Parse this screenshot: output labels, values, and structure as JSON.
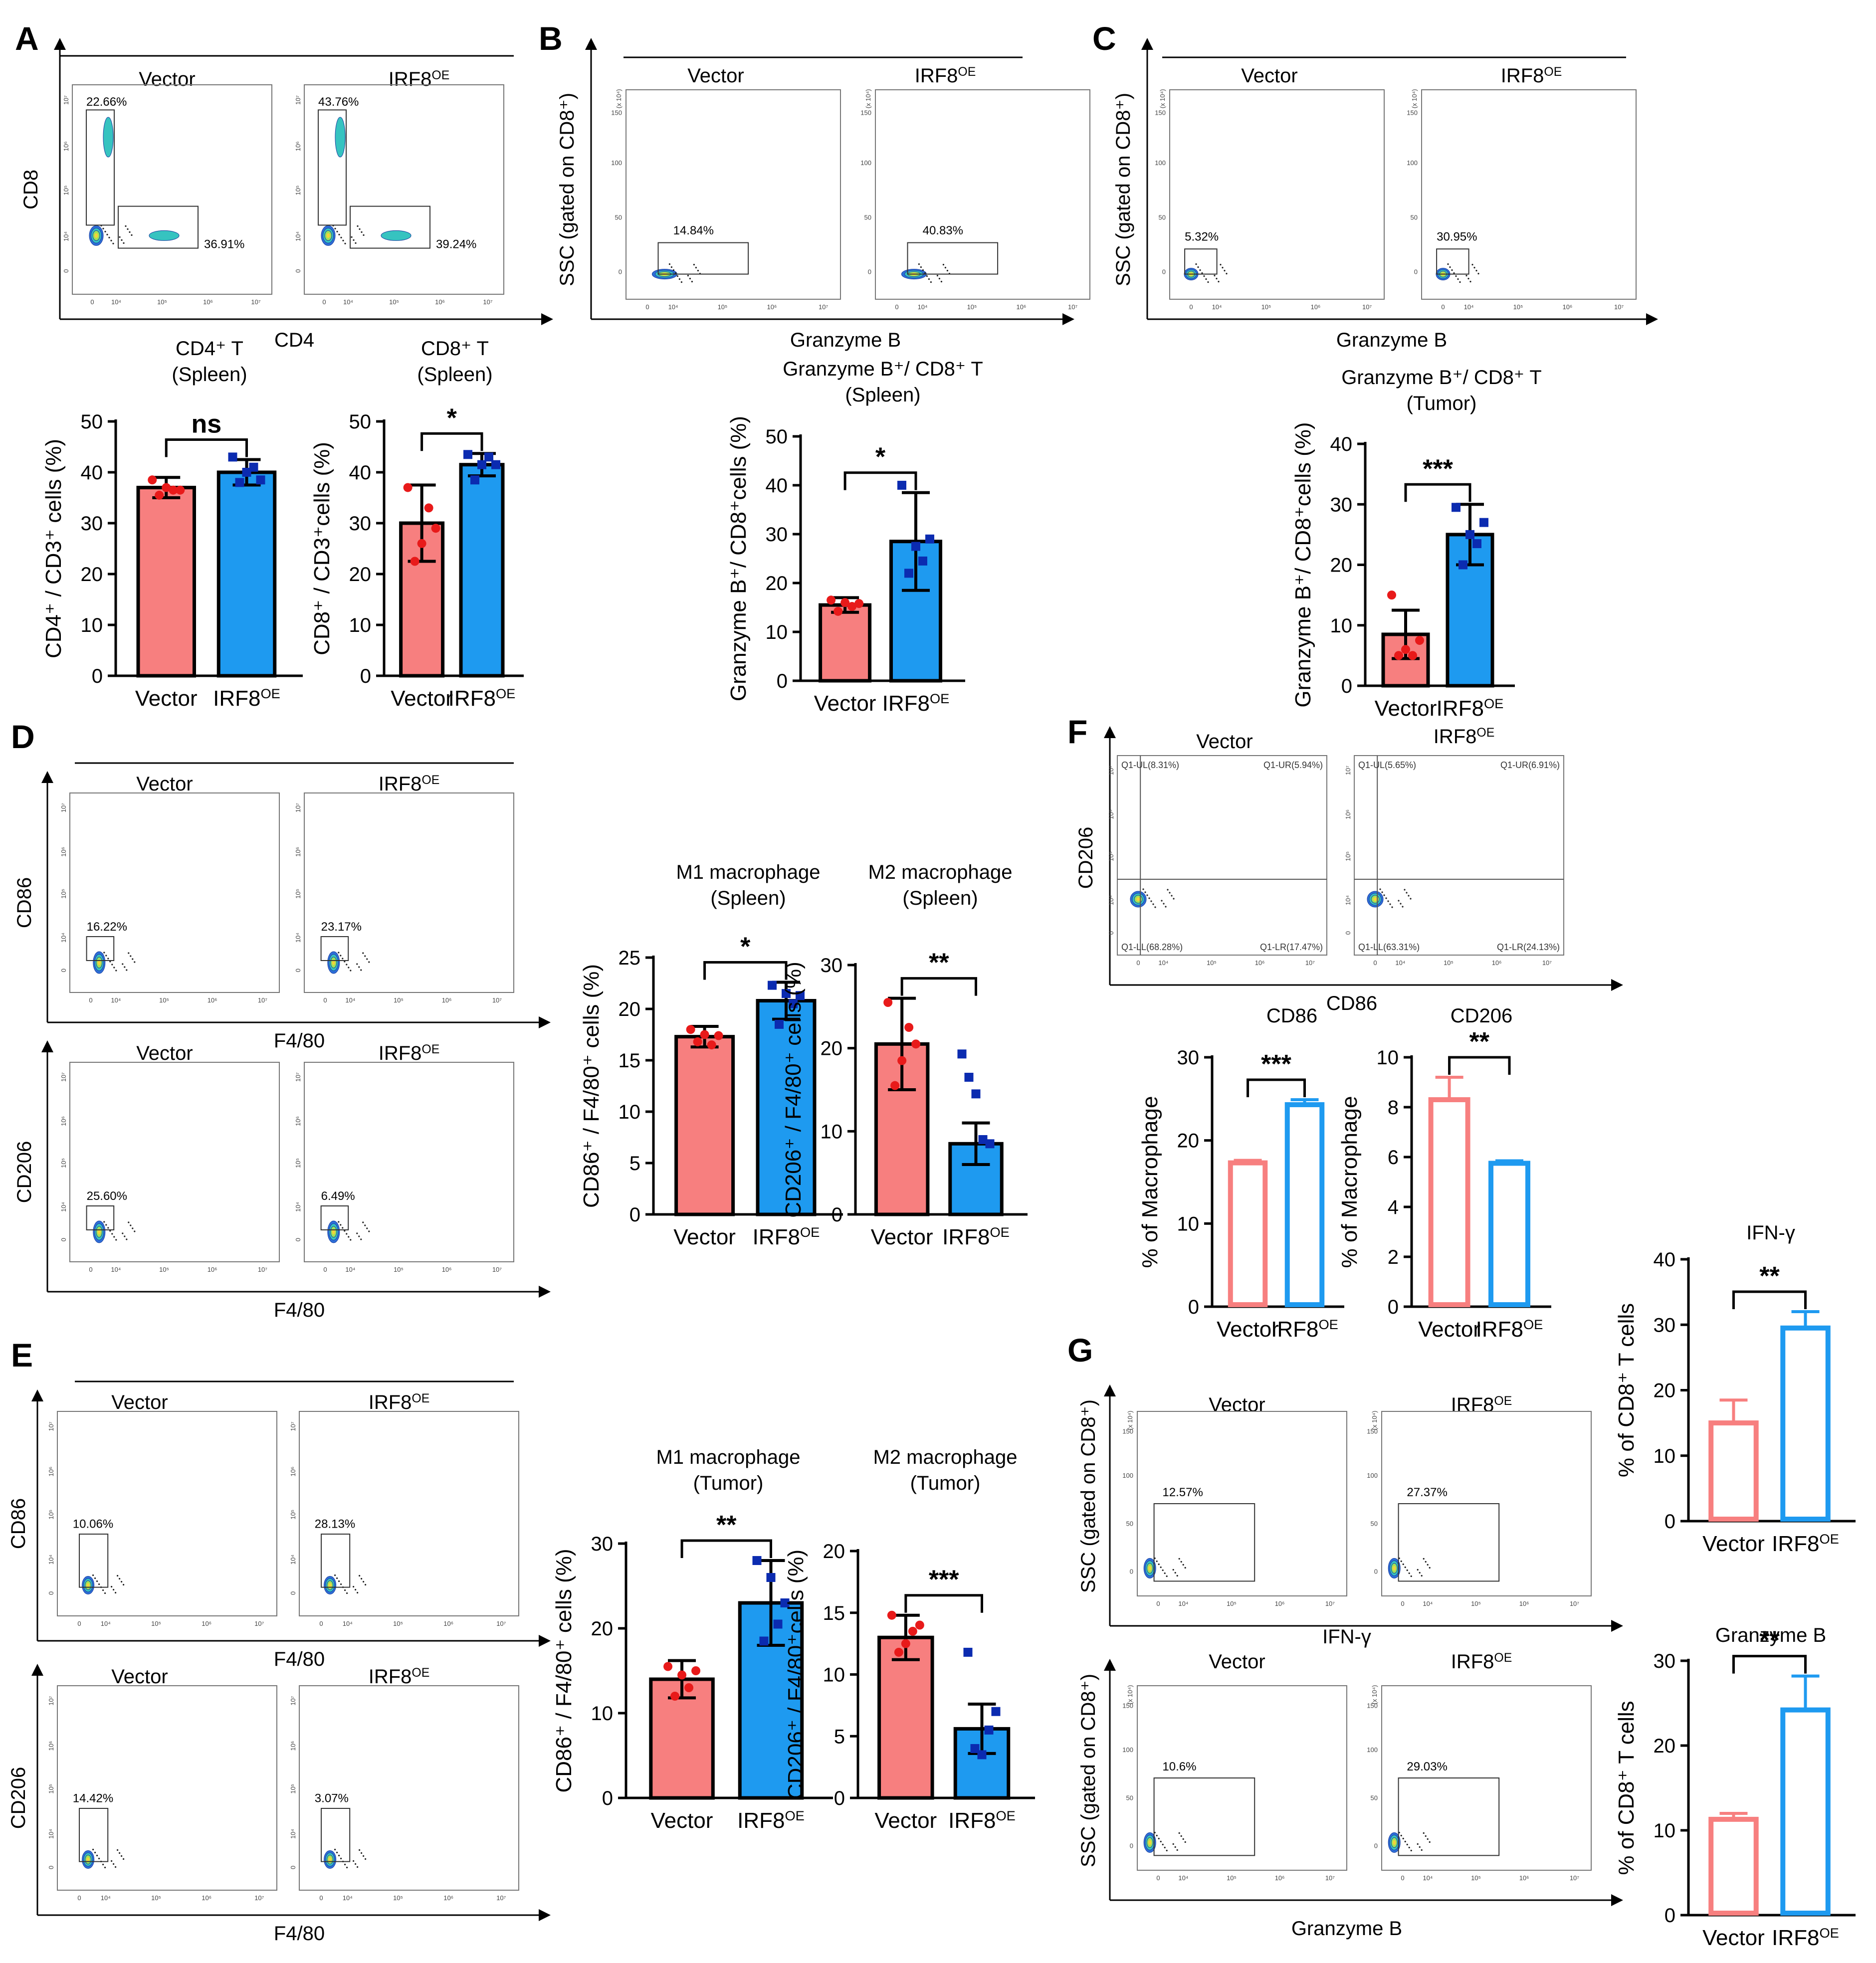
{
  "panels": {
    "A": {
      "label": "A",
      "group": "Spleen",
      "samples": [
        "Vector",
        "IRF8OE"
      ],
      "x_axis": "CD4",
      "y_axis": "CD8",
      "gates": [
        [
          "22.66%",
          "36.91%"
        ],
        [
          "43.76%",
          "39.24%"
        ]
      ]
    },
    "B": {
      "label": "B",
      "group": "Spleen",
      "samples": [
        "Vector",
        "IRF8OE"
      ],
      "x_axis": "Granzyme B",
      "y_axis": "SSC (gated on CD8⁺)",
      "gates": [
        [
          "14.84%"
        ],
        [
          "40.83%"
        ]
      ]
    },
    "C": {
      "label": "C",
      "group": "Tumor",
      "samples": [
        "Vector",
        "IRF8OE"
      ],
      "x_axis": "Granzyme B",
      "y_axis": "SSC (gated on CD8⁺)",
      "gates": [
        [
          "5.32%"
        ],
        [
          "30.95%"
        ]
      ]
    },
    "D": {
      "label": "D",
      "group": "Spleen",
      "rows": [
        {
          "y_axis": "CD86",
          "x_axis": "F4/80",
          "samples": [
            "Vector",
            "IRF8OE"
          ],
          "gates": [
            "16.22%",
            "23.17%"
          ]
        },
        {
          "y_axis": "CD206",
          "x_axis": "F4/80",
          "samples": [
            "Vector",
            "IRF8OE"
          ],
          "gates": [
            "25.60%",
            "6.49%"
          ]
        }
      ]
    },
    "E": {
      "label": "E",
      "group": "Tumor",
      "rows": [
        {
          "y_axis": "CD86",
          "x_axis": "F4/80",
          "samples": [
            "Vector",
            "IRF8OE"
          ],
          "gates": [
            "10.06%",
            "28.13%"
          ]
        },
        {
          "y_axis": "CD206",
          "x_axis": "F4/80",
          "samples": [
            "Vector",
            "IRF8OE"
          ],
          "gates": [
            "14.42%",
            "3.07%"
          ]
        }
      ]
    },
    "F": {
      "label": "F",
      "samples": [
        "Vector",
        "IRF8OE"
      ],
      "x_axis": "CD86",
      "y_axis": "CD206",
      "quadrants": [
        [
          "Q1-UL(8.31%)",
          "Q1-UR(5.94%)",
          "Q1-LL(68.28%)",
          "Q1-LR(17.47%)"
        ],
        [
          "Q1-UL(5.65%)",
          "Q1-UR(6.91%)",
          "Q1-LL(63.31%)",
          "Q1-LR(24.13%)"
        ]
      ]
    },
    "G": {
      "label": "G",
      "rows": [
        {
          "y_axis": "SSC (gated on CD8⁺)",
          "x_axis": "IFN-γ",
          "samples": [
            "Vector",
            "IRF8OE"
          ],
          "gates": [
            "12.57%",
            "27.37%"
          ]
        },
        {
          "y_axis": "SSC (gated on CD8⁺)",
          "x_axis": "Granzyme B",
          "samples": [
            "Vector",
            "IRF8OE"
          ],
          "gates": [
            "10.6%",
            "29.03%"
          ]
        }
      ]
    }
  },
  "flow_ticks": {
    "log": [
      "0",
      "10⁴",
      "10⁵",
      "10⁶",
      "10⁷"
    ],
    "linear": [
      "0",
      "50",
      "100",
      "150"
    ],
    "scale": "(x 10⁴)"
  },
  "colors": {
    "vector": "#f77f7f",
    "irf8": "#1e9af0",
    "vector_dot": "#e81a1a",
    "irf8_dot": "#0b2bb0"
  },
  "chart_data": [
    {
      "id": "A1",
      "type": "bar",
      "title": [
        "CD4⁺ T",
        "(Spleen)"
      ],
      "ylabel": "CD4⁺ / CD3⁺ cells (%)",
      "ylim": [
        0,
        50
      ],
      "yticks": [
        0,
        10,
        20,
        30,
        40,
        50
      ],
      "categories": [
        "Vector",
        "IRF8OE"
      ],
      "values": [
        37,
        40
      ],
      "errors": [
        2,
        2.5
      ],
      "points": [
        [
          38.5,
          35.5,
          37,
          36.5,
          36.5
        ],
        [
          43,
          38,
          40,
          41,
          38.5
        ]
      ],
      "significance": "ns",
      "style": "filled"
    },
    {
      "id": "A2",
      "type": "bar",
      "title": [
        "CD8⁺ T",
        "(Spleen)"
      ],
      "ylabel": "CD8⁺ / CD3⁺cells (%)",
      "ylim": [
        0,
        50
      ],
      "yticks": [
        0,
        10,
        20,
        30,
        40,
        50
      ],
      "categories": [
        "Vector",
        "IRF8OE"
      ],
      "values": [
        30,
        41.5
      ],
      "errors": [
        7.5,
        2.2
      ],
      "points": [
        [
          37,
          22.5,
          26,
          33,
          29
        ],
        [
          43.5,
          38.5,
          41.5,
          43,
          41.5
        ]
      ],
      "significance": "*",
      "style": "filled"
    },
    {
      "id": "B1",
      "type": "bar",
      "title": [
        "Granzyme B⁺/ CD8⁺ T",
        "(Spleen)"
      ],
      "ylabel": "Granzyme B⁺/ CD8⁺cells (%)",
      "ylim": [
        0,
        50
      ],
      "yticks": [
        0,
        10,
        20,
        30,
        40,
        50
      ],
      "categories": [
        "Vector",
        "IRF8OE"
      ],
      "values": [
        15.5,
        28.5
      ],
      "errors": [
        1.5,
        10
      ],
      "points": [
        [
          16.5,
          14.2,
          16,
          15.2,
          15.8
        ],
        [
          40,
          22,
          27.5,
          24.5,
          29
        ]
      ],
      "significance": "*",
      "style": "filled"
    },
    {
      "id": "C1",
      "type": "bar",
      "title": [
        "Granzyme B⁺/ CD8⁺ T",
        "(Tumor)"
      ],
      "ylabel": "Granzyme B⁺/ CD8⁺cells (%)",
      "ylim": [
        0,
        40
      ],
      "yticks": [
        0,
        10,
        20,
        30,
        40
      ],
      "categories": [
        "Vector",
        "IRF8OE"
      ],
      "values": [
        8.5,
        25
      ],
      "errors": [
        4,
        5
      ],
      "points": [
        [
          15,
          5,
          6,
          5,
          7.5
        ],
        [
          29.5,
          20,
          25,
          23.5,
          27
        ]
      ],
      "significance": "***",
      "style": "filled"
    },
    {
      "id": "D1",
      "type": "bar",
      "title": [
        "M1 macrophage",
        "(Spleen)"
      ],
      "ylabel": "CD86⁺ / F4/80⁺ cells (%)",
      "ylim": [
        0,
        25
      ],
      "yticks": [
        0,
        5,
        10,
        15,
        20,
        25
      ],
      "categories": [
        "Vector",
        "IRF8OE"
      ],
      "values": [
        17.3,
        20.8
      ],
      "errors": [
        1.0,
        1.8
      ],
      "points": [
        [
          18,
          16.8,
          17.5,
          16.5,
          17.4
        ],
        [
          22.3,
          18.5,
          21.5,
          20.5,
          21.3
        ]
      ],
      "significance": "*",
      "style": "filled"
    },
    {
      "id": "D2",
      "type": "bar",
      "title": [
        "M2 macrophage",
        "(Spleen)"
      ],
      "ylabel": "CD206⁺ / F4/80⁺ cells (%)",
      "ylim": [
        0,
        30
      ],
      "yticks": [
        0,
        10,
        20,
        30
      ],
      "categories": [
        "Vector",
        "IRF8OE"
      ],
      "values": [
        20.5,
        8.5
      ],
      "errors": [
        5.5,
        2.5
      ],
      "points": [
        [
          25.5,
          15.5,
          18.5,
          22.5,
          20.5
        ],
        [
          19.3,
          16.5,
          14.5,
          9,
          8.5
        ]
      ],
      "significance": "**",
      "style": "filled"
    },
    {
      "id": "E1",
      "type": "bar",
      "title": [
        "M1 macrophage",
        "(Tumor)"
      ],
      "ylabel": "CD86⁺ / F4/80⁺ cells (%)",
      "ylim": [
        0,
        30
      ],
      "yticks": [
        0,
        10,
        20,
        30
      ],
      "categories": [
        "Vector",
        "IRF8OE"
      ],
      "values": [
        14,
        23
      ],
      "errors": [
        2.2,
        5
      ],
      "points": [
        [
          15.5,
          12,
          14.5,
          13,
          15
        ],
        [
          28,
          18.5,
          26,
          20.5,
          23
        ]
      ],
      "significance": "**",
      "style": "filled"
    },
    {
      "id": "E2",
      "type": "bar",
      "title": [
        "M2 macrophage",
        "(Tumor)"
      ],
      "ylabel": "CD206⁺ / F4/80⁺cells (%)",
      "ylim": [
        0,
        20
      ],
      "yticks": [
        0,
        5,
        10,
        15,
        20
      ],
      "categories": [
        "Vector",
        "IRF8OE"
      ],
      "values": [
        13,
        5.6
      ],
      "errors": [
        1.8,
        2
      ],
      "points": [
        [
          14.8,
          11.8,
          12.5,
          13.5,
          14
        ],
        [
          11.8,
          4,
          3.5,
          5.5,
          7
        ]
      ],
      "significance": "***",
      "style": "filled"
    },
    {
      "id": "F1",
      "type": "bar",
      "title": [
        "CD86"
      ],
      "ylabel": "% of Macrophage",
      "ylim": [
        0,
        30
      ],
      "yticks": [
        0,
        10,
        20,
        30
      ],
      "categories": [
        "Vector",
        "IRF8OE"
      ],
      "values": [
        17.3,
        24.3
      ],
      "errors": [
        0.3,
        0.6
      ],
      "points": [],
      "significance": "***",
      "style": "outline"
    },
    {
      "id": "F2",
      "type": "bar",
      "title": [
        "CD206"
      ],
      "ylabel": "% of Macrophage",
      "ylim": [
        0,
        10
      ],
      "yticks": [
        0,
        2,
        4,
        6,
        8,
        10
      ],
      "categories": [
        "Vector",
        "IRF8OE"
      ],
      "values": [
        8.3,
        5.75
      ],
      "errors": [
        0.9,
        0.1
      ],
      "points": [],
      "significance": "**",
      "style": "outline"
    },
    {
      "id": "G1",
      "type": "bar",
      "title": [
        "IFN-γ"
      ],
      "ylabel": "% of CD8⁺  T cells",
      "ylim": [
        0,
        40
      ],
      "yticks": [
        0,
        10,
        20,
        30,
        40
      ],
      "categories": [
        "Vector",
        "IRF8OE"
      ],
      "values": [
        15,
        29.5
      ],
      "errors": [
        3.5,
        2.5
      ],
      "points": [],
      "significance": "**",
      "style": "outline"
    },
    {
      "id": "G2",
      "type": "bar",
      "title": [
        "Granzyme B"
      ],
      "ylabel": "% of CD8⁺  T cells",
      "ylim": [
        0,
        30
      ],
      "yticks": [
        0,
        10,
        20,
        30
      ],
      "categories": [
        "Vector",
        "IRF8OE"
      ],
      "values": [
        11.3,
        24.2
      ],
      "errors": [
        0.7,
        4
      ],
      "points": [],
      "significance": "**",
      "style": "outline"
    }
  ]
}
